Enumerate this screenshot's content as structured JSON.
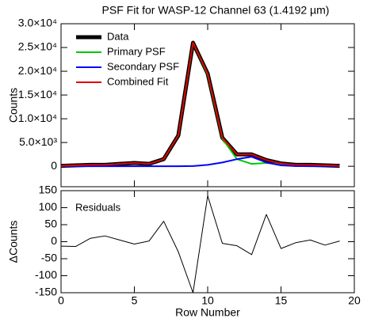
{
  "chart_data": [
    {
      "type": "line",
      "title": "PSF Fit for WASP-12 Channel 63 (1.4192 µm)",
      "y_label": "Counts",
      "x": [
        0,
        1,
        2,
        3,
        4,
        5,
        6,
        7,
        8,
        9,
        10,
        11,
        12,
        13,
        14,
        15,
        16,
        17,
        18,
        19
      ],
      "series": [
        {
          "name": "Data",
          "color": "#000000",
          "values": [
            100,
            200,
            300,
            300,
            500,
            700,
            500,
            1500,
            6500,
            26000,
            19500,
            6000,
            2500,
            2500,
            1300,
            600,
            300,
            300,
            200,
            100
          ]
        },
        {
          "name": "Primary PSF",
          "color": "#00c800",
          "values": [
            100,
            200,
            300,
            300,
            500,
            700,
            500,
            1500,
            6500,
            26000,
            19300,
            5800,
            1500,
            500,
            700,
            400,
            200,
            200,
            150,
            100
          ]
        },
        {
          "name": "Secondary PSF",
          "color": "#0000ff",
          "values": [
            0,
            0,
            0,
            0,
            0,
            0,
            0,
            0,
            0,
            50,
            300,
            800,
            1500,
            2000,
            800,
            200,
            50,
            0,
            0,
            0
          ]
        },
        {
          "name": "Combined Fit",
          "color": "#e00000",
          "values": [
            100,
            200,
            300,
            300,
            500,
            700,
            500,
            1500,
            6500,
            26000,
            19500,
            6000,
            2500,
            2500,
            1300,
            600,
            300,
            300,
            200,
            100
          ]
        }
      ],
      "xlim": [
        0,
        20
      ],
      "xticks": [
        0,
        5,
        10,
        15,
        20
      ],
      "ylim": [
        -4300,
        30000
      ],
      "yticks": [
        0,
        {
          "value": 5000,
          "label": "5.0×10³"
        },
        {
          "value": 10000,
          "label": "1.0×10⁴"
        },
        {
          "value": 15000,
          "label": "1.5×10⁴"
        },
        {
          "value": 20000,
          "label": "2.0×10⁴"
        },
        {
          "value": 25000,
          "label": "2.5×10⁴"
        },
        {
          "value": 30000,
          "label": "3.0×10⁴"
        }
      ],
      "legend": "upper-left"
    },
    {
      "type": "line",
      "annotation": "Residuals",
      "y_label": "ΔCounts",
      "x_label": "Row Number",
      "x": [
        0,
        1,
        2,
        3,
        4,
        5,
        6,
        7,
        8,
        9,
        10,
        11,
        12,
        13,
        14,
        15,
        16,
        17,
        18,
        19
      ],
      "values": [
        -13,
        -14,
        10,
        17,
        5,
        -7,
        2,
        60,
        -30,
        -150,
        135,
        -5,
        -12,
        -38,
        80,
        -20,
        -3,
        5,
        -10,
        2
      ],
      "color": "#000000",
      "xlim": [
        0,
        20
      ],
      "xticks": [
        0,
        5,
        10,
        15,
        20
      ],
      "ylim": [
        -150,
        150
      ],
      "yticks": [
        -150,
        -100,
        -50,
        0,
        50,
        100,
        150
      ]
    }
  ]
}
